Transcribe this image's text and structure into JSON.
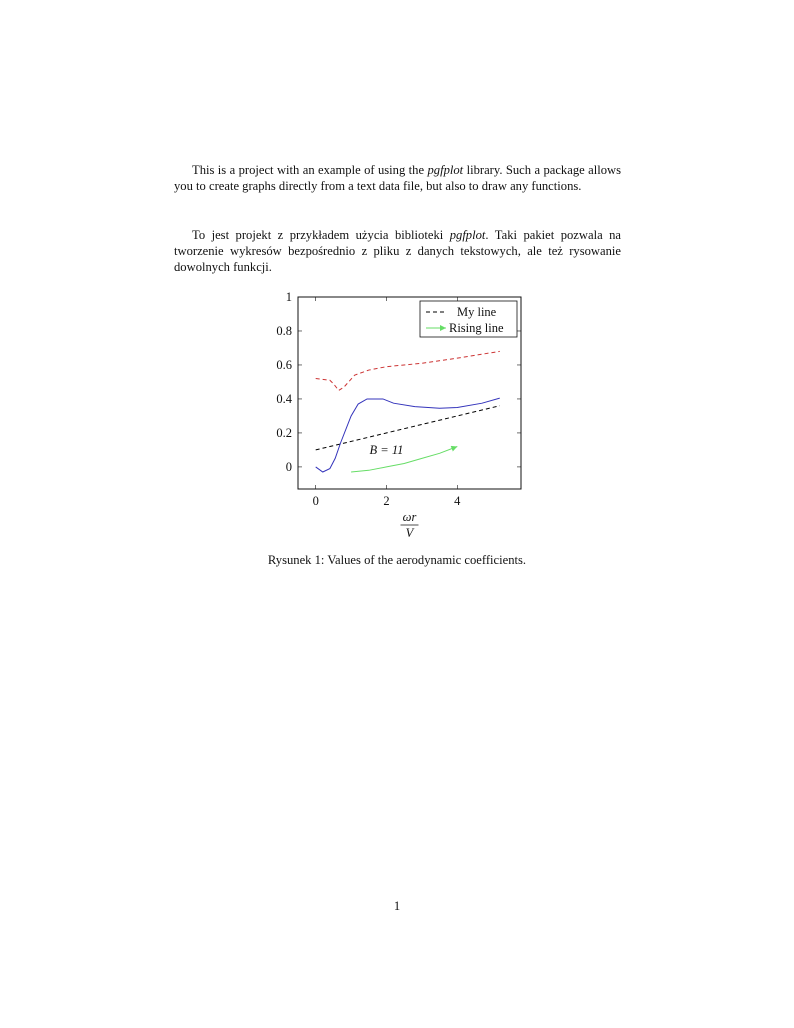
{
  "body": {
    "paragraph_1": {
      "before": "This is a project with an example of using the ",
      "em": "pgfplot",
      "after": " library. Such a package allows you to create graphs directly from a text data file, but also to draw any functions."
    },
    "paragraph_2": {
      "before": "To jest projekt z przykładem użycia biblioteki ",
      "em": "pgfplot",
      "after": ". Taki pakiet pozwala na tworzenie wykresów bezpośrednio z pliku z danych tekstowych, ale też rysowanie dowolnych funkcji."
    }
  },
  "caption": "Rysunek 1: Values of the aerodynamic coefficients.",
  "page_number": "1",
  "chart_data": {
    "type": "line",
    "xlabel_num": "ωr",
    "xlabel_den": "V",
    "xlim": [
      -0.5,
      5.8
    ],
    "ylim": [
      -0.13,
      1
    ],
    "xticks": [
      "0",
      "2",
      "4"
    ],
    "yticks": [
      "0",
      "0.2",
      "0.4",
      "0.6",
      "0.8",
      "1"
    ],
    "grid": false,
    "legend_position": "top-right",
    "annotation": {
      "text": "B = 11",
      "x": 2,
      "y": 0.1
    },
    "series": [
      {
        "name": "My line",
        "style": "dashed",
        "color": "#000000",
        "x": [
          0,
          5.2
        ],
        "y": [
          0.1,
          0.36
        ]
      },
      {
        "name": "Rising line",
        "style": "solid-arrow",
        "color": "#66dd66",
        "x": [
          1,
          1.5,
          2,
          2.5,
          3,
          3.5,
          4
        ],
        "y": [
          -0.03,
          -0.02,
          0.0,
          0.02,
          0.05,
          0.08,
          0.12
        ]
      },
      {
        "style": "dashed",
        "color": "#cc3333",
        "x": [
          0,
          0.4,
          0.5,
          0.65,
          0.8,
          1.1,
          1.5,
          2,
          3,
          4,
          5.2
        ],
        "y": [
          0.52,
          0.51,
          0.49,
          0.45,
          0.47,
          0.54,
          0.57,
          0.59,
          0.61,
          0.64,
          0.68
        ]
      },
      {
        "style": "solid",
        "color": "#3333bb",
        "x": [
          0,
          0.2,
          0.4,
          0.55,
          0.7,
          1,
          1.2,
          1.45,
          1.9,
          2.2,
          2.8,
          3.5,
          4,
          4.7,
          5.2
        ],
        "y": [
          0,
          -0.03,
          -0.01,
          0.05,
          0.14,
          0.3,
          0.37,
          0.4,
          0.4,
          0.375,
          0.355,
          0.345,
          0.35,
          0.375,
          0.405
        ]
      }
    ]
  }
}
